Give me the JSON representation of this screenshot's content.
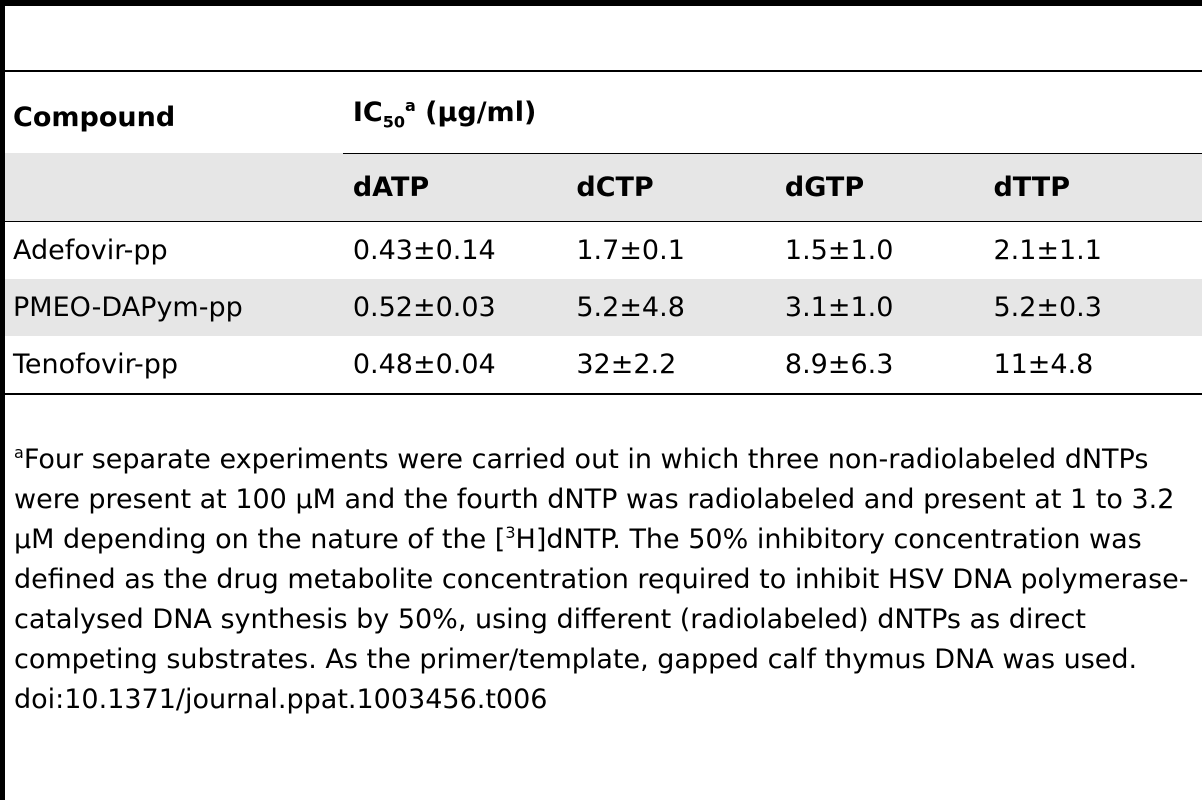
{
  "table": {
    "header": {
      "compound_label": "Compound",
      "group_label_prefix": "IC",
      "group_label_sub": "50",
      "group_label_sup": "a",
      "group_label_suffix": " (μg/ml)",
      "columns": [
        "dATP",
        "dCTP",
        "dGTP",
        "dTTP"
      ]
    },
    "rows": [
      {
        "compound": "Adefovir-pp",
        "values": [
          "0.43±0.14",
          "1.7±0.1",
          "1.5±1.0",
          "2.1±1.1"
        ]
      },
      {
        "compound": "PMEO-DAPym-pp",
        "values": [
          "0.52±0.03",
          "5.2±4.8",
          "3.1±1.0",
          "5.2±0.3"
        ]
      },
      {
        "compound": "Tenofovir-pp",
        "values": [
          "0.48±0.04",
          "32±2.2",
          "8.9±6.3",
          "11±4.8"
        ]
      }
    ]
  },
  "footnote": {
    "marker": "a",
    "text_part1": "Four separate experiments were carried out in which three non-radiolabeled dNTPs were present at 100 μM and the fourth dNTP was radiolabeled and present at 1 to 3.2 μM depending on the nature of the [",
    "isotope_sup": "3",
    "text_part2": "H]dNTP. The 50% inhibitory concentration was defined as the drug metabolite concentration required to inhibit HSV DNA polymerase-catalysed DNA synthesis by 50%, using different (radiolabeled) dNTPs as direct competing substrates. As the primer/template, gapped calf thymus DNA was used.",
    "doi": "doi:10.1371/journal.ppat.1003456.t006"
  }
}
